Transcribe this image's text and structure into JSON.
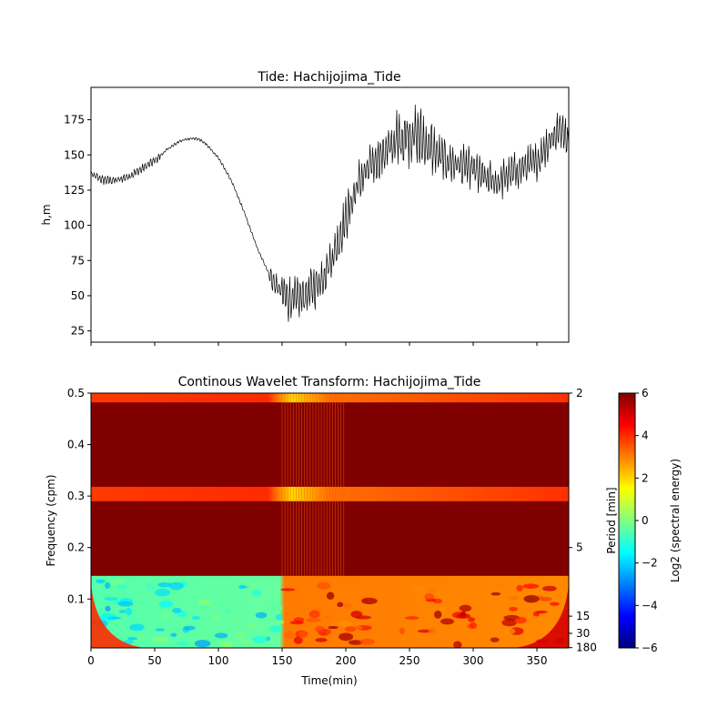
{
  "chart_data": [
    {
      "type": "line",
      "title": "Tide: Hachijojima_Tide",
      "xlabel": "",
      "ylabel": "h,m",
      "xlim": [
        0,
        375
      ],
      "ylim": [
        17,
        198
      ],
      "x_ticks": [
        0,
        50,
        100,
        150,
        200,
        250,
        300,
        350
      ],
      "y_ticks": [
        25,
        50,
        75,
        100,
        125,
        150,
        175
      ],
      "y_tick_labels": [
        "25",
        "50",
        "75",
        "100",
        "125",
        "150",
        "175"
      ],
      "line_color": "#000000",
      "series": [
        {
          "x": [
            0,
            10,
            20,
            30,
            40,
            50,
            60,
            70,
            80,
            85,
            90,
            100,
            110,
            120,
            130,
            140,
            145,
            150,
            155,
            160,
            165,
            170,
            180,
            190,
            200,
            210,
            220,
            230,
            240,
            245,
            250,
            260,
            270,
            280,
            290,
            300,
            310,
            320,
            330,
            340,
            350,
            360,
            370,
            375
          ],
          "y": [
            136,
            132,
            132,
            135,
            140,
            146,
            154,
            160,
            162,
            161,
            158,
            148,
            132,
            110,
            85,
            65,
            57,
            52,
            48,
            47,
            49,
            52,
            60,
            78,
            105,
            130,
            142,
            152,
            160,
            163,
            165,
            160,
            152,
            145,
            142,
            140,
            133,
            130,
            137,
            142,
            145,
            160,
            170,
            160
          ]
        }
      ],
      "noise": [
        {
          "x_start": 0,
          "x_end": 55,
          "amp": 3
        },
        {
          "x_start": 55,
          "x_end": 140,
          "amp": 1
        },
        {
          "x_start": 140,
          "x_end": 150,
          "amp": 8
        },
        {
          "x_start": 150,
          "x_end": 200,
          "amp": 15
        },
        {
          "x_start": 200,
          "x_end": 240,
          "amp": 15
        },
        {
          "x_start": 240,
          "x_end": 270,
          "amp": 22
        },
        {
          "x_start": 270,
          "x_end": 310,
          "amp": 14
        },
        {
          "x_start": 310,
          "x_end": 375,
          "amp": 13
        }
      ]
    },
    {
      "type": "heatmap",
      "title": "Continous Wavelet Transform: Hachijojima_Tide",
      "xlabel": "Time(min)",
      "ylabel": "Frequency (cpm)",
      "right_ylabel": "Period [min]",
      "xlim": [
        0,
        375
      ],
      "ylim": [
        0.005,
        0.5
      ],
      "x_ticks": [
        0,
        50,
        100,
        150,
        200,
        250,
        300,
        350
      ],
      "y_ticks": [
        0.1,
        0.2,
        0.3,
        0.4,
        0.5
      ],
      "y_tick_labels": [
        "0.1",
        "0.2",
        "0.3",
        "0.4",
        "0.5"
      ],
      "period_ticks": [
        2,
        5,
        15,
        30,
        180
      ],
      "colormap": "jet",
      "colorbar": {
        "label": "Log2 (spectral energy)",
        "range": [
          -6,
          6
        ],
        "ticks": [
          -6,
          -4,
          -2,
          0,
          2,
          4,
          6
        ],
        "tick_labels": [
          "−6",
          "−4",
          "−2",
          "0",
          "2",
          "4",
          "6"
        ]
      },
      "bands": [
        {
          "freq_min": 0.145,
          "freq_max": 0.29,
          "log2_energy": 6
        },
        {
          "freq_min": 0.318,
          "freq_max": 0.482,
          "log2_energy": 6
        },
        {
          "freq_min": 0.29,
          "freq_max": 0.318,
          "log2_energy": 4.5
        },
        {
          "freq_min": 0.482,
          "freq_max": 0.5,
          "log2_energy": 5
        }
      ],
      "low_frequency_region": {
        "freq_max": 0.145,
        "time_0_150_log2_energy": -1,
        "time_150_375_log2_energy": 4
      }
    }
  ]
}
